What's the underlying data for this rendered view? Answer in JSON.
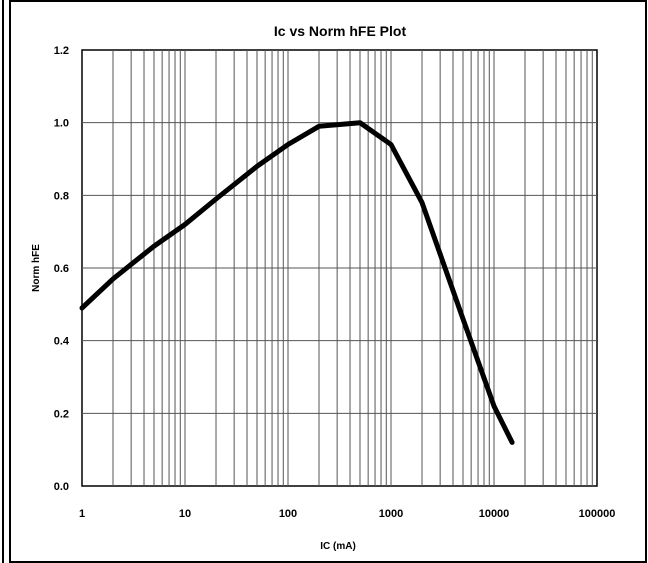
{
  "chart_data": {
    "type": "line",
    "title": "Ic vs Norm hFE Plot",
    "xlabel": "IC (mA)",
    "ylabel": "Norm hFE",
    "x_scale": "log",
    "xlim": [
      1,
      100000
    ],
    "ylim": [
      0,
      1.2
    ],
    "x_tick_labels": [
      "1",
      "10",
      "100",
      "1000",
      "10000",
      "100000"
    ],
    "y_tick_labels": [
      "0.0",
      "0.2",
      "0.4",
      "0.6",
      "0.8",
      "1.0",
      "1.2"
    ],
    "grid": true,
    "series": [
      {
        "x": [
          1,
          2,
          5,
          10,
          20,
          50,
          100,
          200,
          500,
          1000,
          2000,
          5000,
          10000,
          15000
        ],
        "y": [
          0.49,
          0.57,
          0.66,
          0.72,
          0.79,
          0.88,
          0.94,
          0.99,
          1.0,
          0.94,
          0.78,
          0.46,
          0.22,
          0.12
        ],
        "color": "#000000"
      }
    ]
  }
}
